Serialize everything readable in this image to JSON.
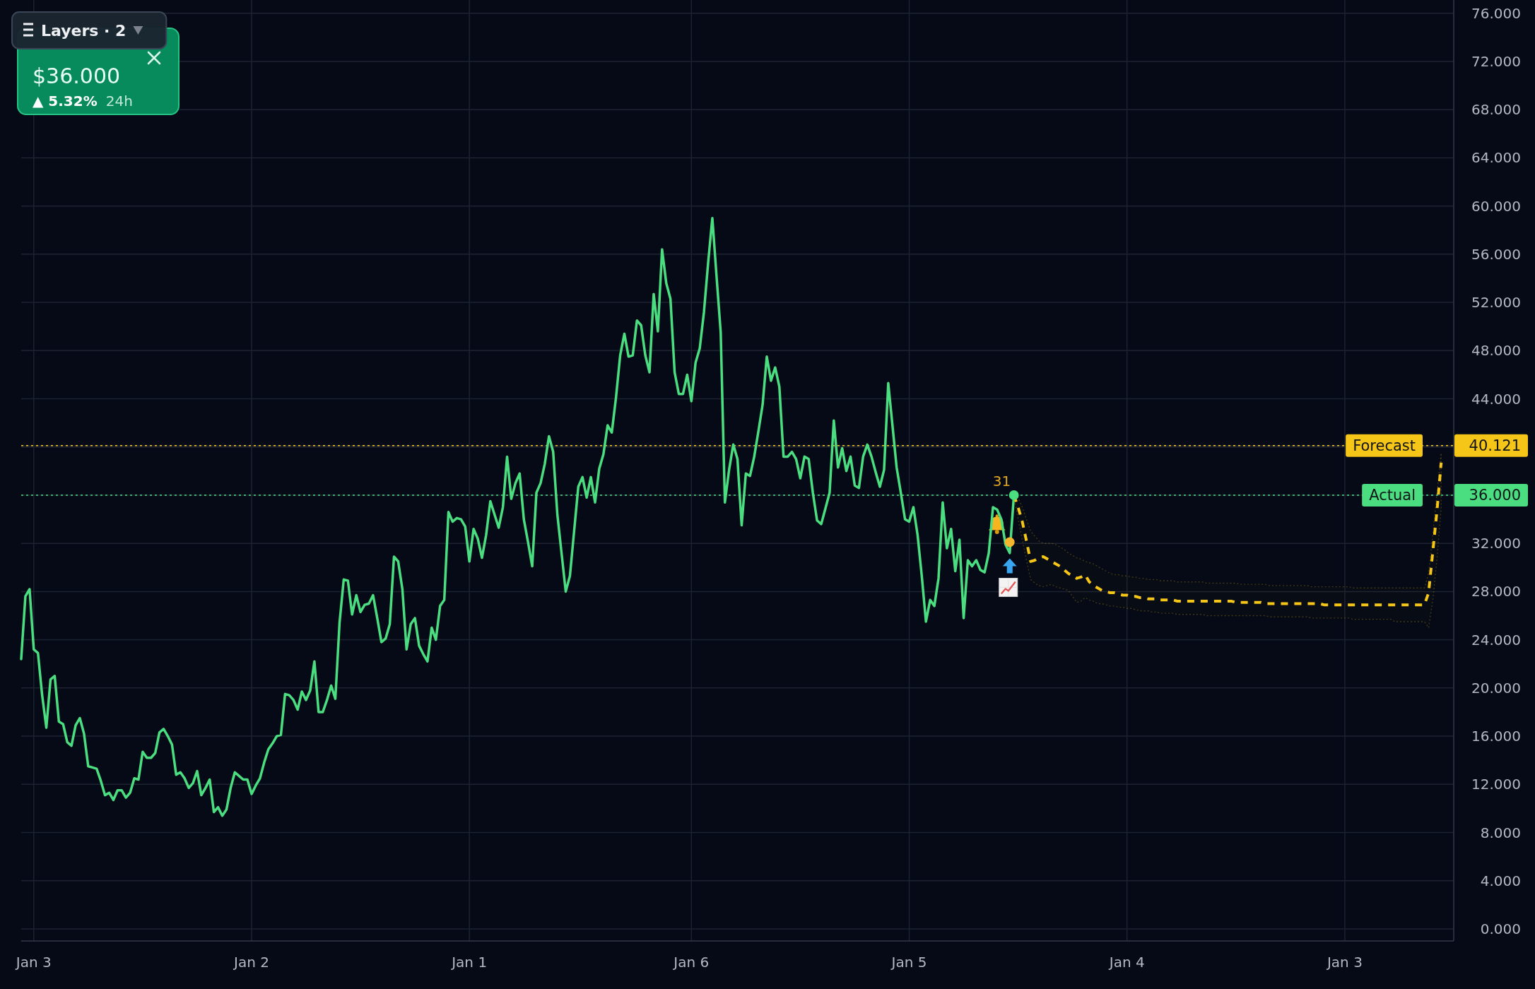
{
  "chart_data": {
    "type": "line",
    "categories": [
      null,
      null,
      null,
      "Jan 3",
      null,
      null,
      null,
      null,
      null,
      null,
      null,
      null,
      null,
      null,
      null,
      null,
      null,
      null,
      null,
      null,
      null,
      null,
      null,
      null,
      null,
      null,
      null,
      null,
      null,
      null,
      null,
      null,
      null,
      null,
      null,
      null,
      null,
      null,
      null,
      null,
      null,
      null,
      null,
      null,
      null,
      null,
      null,
      null,
      null,
      null,
      null,
      null,
      null,
      null,
      null,
      "Jan 2",
      null,
      null,
      null,
      null,
      null,
      null,
      null,
      null,
      null,
      null,
      null,
      null,
      null,
      null,
      null,
      null,
      null,
      null,
      null,
      null,
      null,
      null,
      null,
      null,
      null,
      null,
      null,
      null,
      null,
      null,
      null,
      null,
      null,
      null,
      null,
      null,
      null,
      null,
      null,
      null,
      null,
      null,
      null,
      null,
      null,
      null,
      null,
      null,
      null,
      null,
      null,
      "Jan 1",
      null,
      null,
      null,
      null,
      null,
      null,
      null,
      null,
      null,
      null,
      null,
      null,
      null,
      null,
      null,
      null,
      null,
      null,
      null,
      null,
      null,
      null,
      null,
      null,
      null,
      null,
      null,
      null,
      null,
      null,
      null,
      null,
      null,
      null,
      null,
      null,
      null,
      null,
      null,
      null,
      null,
      null,
      null,
      null,
      null,
      null,
      null,
      null,
      null,
      null,
      null,
      null,
      "Jan 6",
      null,
      null,
      null,
      null,
      null,
      null,
      null,
      null,
      null,
      null,
      null,
      null,
      null,
      null,
      null,
      null,
      null,
      null,
      null,
      null,
      null,
      null,
      null,
      null,
      null,
      null,
      null,
      null,
      null,
      null,
      null,
      null,
      null,
      null,
      null,
      null,
      null,
      null,
      null,
      null,
      null,
      null,
      null,
      null,
      null,
      null,
      null,
      null,
      null,
      null,
      null,
      "Jan 5",
      null,
      null,
      null,
      null,
      null,
      null,
      null,
      null,
      null,
      null,
      null,
      null,
      null,
      null,
      null,
      null,
      null,
      null,
      null,
      null,
      null,
      null,
      null,
      null,
      null,
      null,
      null,
      null,
      null,
      null,
      null,
      null,
      null,
      null,
      null,
      null,
      null,
      null,
      null,
      null,
      null,
      null,
      null,
      null,
      null,
      null,
      null,
      null,
      null,
      null,
      null,
      "Jan 4",
      null,
      null,
      null,
      null,
      null,
      null,
      null,
      null,
      null,
      null,
      null,
      null,
      null,
      null,
      null,
      null,
      null,
      null,
      null,
      null,
      null,
      null,
      null,
      null,
      null,
      null,
      null,
      null,
      null,
      null,
      null,
      null,
      null,
      null,
      null,
      null,
      null,
      null,
      null,
      null,
      null,
      null,
      null,
      null,
      null,
      null,
      null,
      null,
      null,
      null,
      null,
      "Jan 3",
      null,
      null,
      null,
      null,
      null,
      null,
      null,
      null,
      null,
      null,
      null,
      null,
      null,
      null,
      null,
      null,
      null,
      null,
      null,
      null,
      null,
      null,
      null,
      null,
      null,
      null
    ],
    "ylim": [
      -1,
      77.1
    ],
    "yticks": [
      {
        "value": 0,
        "label": "0.000"
      },
      {
        "value": 4,
        "label": "4.000"
      },
      {
        "value": 8,
        "label": "8.000"
      },
      {
        "value": 12,
        "label": "12.000"
      },
      {
        "value": 16,
        "label": "16.000"
      },
      {
        "value": 20,
        "label": "20.000"
      },
      {
        "value": 24,
        "label": "24.000"
      },
      {
        "value": 28,
        "label": "28.000"
      },
      {
        "value": 32,
        "label": "32.000"
      },
      {
        "value": 36,
        "label": "36.000"
      },
      {
        "value": 40,
        "label": null
      },
      {
        "value": 40.121,
        "label": "40.121"
      },
      {
        "value": 44,
        "label": "44.000"
      },
      {
        "value": 48,
        "label": "48.000"
      },
      {
        "value": 52,
        "label": "52.000"
      },
      {
        "value": 56,
        "label": "56.000"
      },
      {
        "value": 60,
        "label": "60.000"
      },
      {
        "value": 64,
        "label": "64.000"
      },
      {
        "value": 68,
        "label": "68.000"
      },
      {
        "value": 72,
        "label": "72.000"
      },
      {
        "value": 76,
        "label": "76.000"
      }
    ],
    "grid": true,
    "series": [
      {
        "color": "#4ade80",
        "values": [
          22.4,
          27.6,
          28.2,
          23.2,
          22.9,
          19.4,
          16.7,
          20.7,
          21.0,
          17.2,
          17.0,
          15.5,
          15.2,
          16.9,
          17.5,
          16.2,
          13.5,
          13.4,
          13.3,
          12.3,
          11.1,
          11.3,
          10.7,
          11.5,
          11.5,
          10.9,
          11.3,
          12.5,
          12.4,
          14.7,
          14.2,
          14.2,
          14.6,
          16.3,
          16.6,
          16.0,
          15.3,
          12.8,
          13.0,
          12.5,
          11.7,
          12.1,
          13.1,
          11.1,
          11.7,
          12.4,
          9.7,
          10.1,
          9.4,
          9.9,
          11.7,
          13.0,
          12.7,
          12.4,
          12.4,
          11.2,
          11.9,
          12.5,
          13.8,
          14.9,
          15.4,
          16.0,
          16.1,
          19.5,
          19.4,
          19.0,
          18.2,
          19.7,
          19.0,
          19.8,
          22.2,
          18.0,
          18.0,
          19.0,
          20.2,
          19.1,
          25.4,
          29.0,
          28.9,
          26.1,
          27.7,
          26.3,
          26.9,
          27.0,
          27.7,
          25.8,
          23.8,
          24.1,
          25.3,
          30.9,
          30.5,
          28.2,
          23.2,
          25.3,
          25.8,
          23.5,
          22.8,
          22.2,
          25.0,
          24.0,
          26.8,
          27.3,
          34.6,
          33.8,
          34.1,
          34.0,
          33.4,
          30.5,
          33.2,
          32.4,
          30.8,
          32.7,
          35.5,
          34.4,
          33.3,
          35.0,
          39.2,
          35.7,
          37.0,
          37.8,
          34.0,
          32.1,
          30.1,
          36.2,
          37.0,
          38.6,
          40.9,
          39.6,
          34.4,
          31.2,
          28.0,
          29.3,
          33.0,
          36.7,
          37.5,
          35.8,
          37.5,
          35.4,
          38.2,
          39.4,
          41.8,
          41.2,
          44.1,
          47.6,
          49.4,
          47.5,
          47.6,
          50.5,
          50.1,
          47.6,
          46.2,
          52.7,
          49.6,
          56.4,
          53.6,
          52.3,
          46.2,
          44.4,
          44.4,
          46.0,
          43.8,
          47.0,
          48.2,
          51.2,
          55.3,
          59.0,
          54.2,
          49.5,
          35.4,
          38.1,
          40.2,
          39.0,
          33.5,
          37.8,
          37.6,
          39.2,
          41.3,
          43.5,
          47.5,
          45.5,
          46.6,
          45.0,
          39.2,
          39.2,
          39.6,
          39.0,
          37.4,
          39.2,
          39.0,
          36.2,
          33.9,
          33.6,
          34.9,
          36.2,
          42.2,
          38.3,
          39.9,
          38.0,
          39.2,
          36.8,
          36.6,
          39.2,
          40.2,
          39.2,
          37.9,
          36.7,
          38.1,
          45.3,
          41.8,
          38.3,
          36.2,
          34.0,
          33.8,
          35.0,
          32.7,
          29.3,
          25.5,
          27.3,
          26.8,
          29.1,
          35.4,
          31.6,
          33.2,
          29.7,
          32.3,
          25.8,
          30.6,
          30.1,
          30.6,
          29.8,
          29.6,
          31.2,
          35.0,
          34.8,
          34.0,
          31.9,
          31.2,
          36.0,
          null,
          null,
          null,
          null,
          null,
          null,
          null,
          null,
          null,
          null,
          null,
          null,
          null,
          null,
          null,
          null,
          null,
          null,
          null,
          null,
          null,
          null,
          null,
          null,
          null,
          null,
          null,
          null,
          null,
          null,
          null,
          null,
          null,
          null,
          null,
          null,
          null,
          null,
          null,
          null,
          null,
          null,
          null,
          null,
          null,
          null,
          null,
          null,
          null,
          null,
          null,
          null,
          null,
          null,
          null,
          null,
          null,
          null,
          null,
          null,
          null,
          null,
          null,
          null,
          null,
          null,
          null,
          null,
          null,
          null,
          null,
          null,
          null,
          null,
          null,
          null,
          null,
          null,
          null,
          null,
          null,
          null,
          null,
          null,
          null,
          null,
          null,
          null,
          null,
          null,
          null,
          null,
          null,
          null,
          null,
          null,
          null,
          null,
          null,
          null,
          null,
          null,
          null,
          null,
          null
        ]
      },
      {
        "color": "#f5c518",
        "line_style": "dashed",
        "values": [
          null,
          null,
          null,
          null,
          null,
          null,
          null,
          null,
          null,
          null,
          null,
          null,
          null,
          null,
          null,
          null,
          null,
          null,
          null,
          null,
          null,
          null,
          null,
          null,
          null,
          null,
          null,
          null,
          null,
          null,
          null,
          null,
          null,
          null,
          null,
          null,
          null,
          null,
          null,
          null,
          null,
          null,
          null,
          null,
          null,
          null,
          null,
          null,
          null,
          null,
          null,
          null,
          null,
          null,
          null,
          null,
          null,
          null,
          null,
          null,
          null,
          null,
          null,
          null,
          null,
          null,
          null,
          null,
          null,
          null,
          null,
          null,
          null,
          null,
          null,
          null,
          null,
          null,
          null,
          null,
          null,
          null,
          null,
          null,
          null,
          null,
          null,
          null,
          null,
          null,
          null,
          null,
          null,
          null,
          null,
          null,
          null,
          null,
          null,
          null,
          null,
          null,
          null,
          null,
          null,
          null,
          null,
          null,
          null,
          null,
          null,
          null,
          null,
          null,
          null,
          null,
          null,
          null,
          null,
          null,
          null,
          null,
          null,
          null,
          null,
          null,
          null,
          null,
          null,
          null,
          null,
          null,
          null,
          null,
          null,
          null,
          null,
          null,
          null,
          null,
          null,
          null,
          null,
          null,
          null,
          null,
          null,
          null,
          null,
          null,
          null,
          null,
          null,
          null,
          null,
          null,
          null,
          null,
          null,
          null,
          null,
          null,
          null,
          null,
          null,
          null,
          null,
          null,
          null,
          null,
          null,
          null,
          null,
          null,
          null,
          null,
          null,
          null,
          null,
          null,
          null,
          null,
          null,
          null,
          null,
          null,
          null,
          null,
          null,
          null,
          null,
          null,
          null,
          null,
          null,
          null,
          null,
          null,
          null,
          null,
          null,
          null,
          null,
          null,
          null,
          null,
          null,
          null,
          null,
          null,
          null,
          null,
          null,
          null,
          null,
          null,
          null,
          null,
          null,
          null,
          null,
          null,
          null,
          null,
          null,
          null,
          null,
          null,
          null,
          null,
          null,
          null,
          null,
          null,
          null,
          null,
          null,
          36.0,
          35.0,
          33.8,
          32.2,
          30.5,
          30.6,
          30.8,
          30.9,
          30.7,
          30.5,
          30.3,
          30.1,
          29.8,
          29.5,
          29.3,
          29.1,
          29.2,
          29.4,
          28.8,
          28.5,
          28.3,
          28.1,
          28.0,
          27.9,
          27.9,
          27.8,
          27.7,
          27.7,
          27.6,
          27.6,
          27.5,
          27.5,
          27.4,
          27.4,
          27.4,
          27.3,
          27.3,
          27.3,
          27.3,
          27.2,
          27.2,
          27.2,
          27.2,
          27.2,
          27.2,
          27.2,
          27.2,
          27.2,
          27.2,
          27.2,
          27.2,
          27.2,
          27.2,
          27.1,
          27.1,
          27.1,
          27.1,
          27.1,
          27.1,
          27.1,
          27.0,
          27.0,
          27.0,
          27.0,
          27.0,
          27.0,
          27.0,
          27.0,
          27.0,
          27.0,
          27.0,
          27.0,
          27.0,
          27.0,
          26.9,
          26.9,
          26.9,
          26.9,
          26.9,
          26.9,
          26.9,
          26.9,
          26.9,
          26.9,
          26.9,
          26.9,
          26.9,
          26.9,
          26.9,
          26.9,
          26.9,
          26.9,
          26.9,
          26.9,
          26.9,
          26.9,
          26.9,
          26.9,
          26.9,
          27.9,
          31.3,
          34.7,
          38.7,
          null,
          null,
          null
        ],
        "upper": [
          null,
          null,
          null,
          null,
          null,
          null,
          null,
          null,
          null,
          null,
          null,
          null,
          null,
          null,
          null,
          null,
          null,
          null,
          null,
          null,
          null,
          null,
          null,
          null,
          null,
          null,
          null,
          null,
          null,
          null,
          null,
          null,
          null,
          null,
          null,
          null,
          null,
          null,
          null,
          null,
          null,
          null,
          null,
          null,
          null,
          null,
          null,
          null,
          null,
          null,
          null,
          null,
          null,
          null,
          null,
          null,
          null,
          null,
          null,
          null,
          null,
          null,
          null,
          null,
          null,
          null,
          null,
          null,
          null,
          null,
          null,
          null,
          null,
          null,
          null,
          null,
          null,
          null,
          null,
          null,
          null,
          null,
          null,
          null,
          null,
          null,
          null,
          null,
          null,
          null,
          null,
          null,
          null,
          null,
          null,
          null,
          null,
          null,
          null,
          null,
          null,
          null,
          null,
          null,
          null,
          null,
          null,
          null,
          null,
          null,
          null,
          null,
          null,
          null,
          null,
          null,
          null,
          null,
          null,
          null,
          null,
          null,
          null,
          null,
          null,
          null,
          null,
          null,
          null,
          null,
          null,
          null,
          null,
          null,
          null,
          null,
          null,
          null,
          null,
          null,
          null,
          null,
          null,
          null,
          null,
          null,
          null,
          null,
          null,
          null,
          null,
          null,
          null,
          null,
          null,
          null,
          null,
          null,
          null,
          null,
          null,
          null,
          null,
          null,
          null,
          null,
          null,
          null,
          null,
          null,
          null,
          null,
          null,
          null,
          null,
          null,
          null,
          null,
          null,
          null,
          null,
          null,
          null,
          null,
          null,
          null,
          null,
          null,
          null,
          null,
          null,
          null,
          null,
          null,
          null,
          null,
          null,
          null,
          null,
          null,
          null,
          null,
          null,
          null,
          null,
          null,
          null,
          null,
          null,
          null,
          null,
          null,
          null,
          null,
          null,
          null,
          null,
          null,
          null,
          null,
          null,
          null,
          null,
          null,
          null,
          null,
          null,
          null,
          null,
          null,
          null,
          null,
          null,
          null,
          null,
          null,
          null,
          36.0,
          35.8,
          35.0,
          34.0,
          33.0,
          32.6,
          32.2,
          32.0,
          32.0,
          32.0,
          31.9,
          31.7,
          31.5,
          31.2,
          31.0,
          30.8,
          30.7,
          30.5,
          30.4,
          30.3,
          30.1,
          29.9,
          29.7,
          29.5,
          29.4,
          29.4,
          29.3,
          29.3,
          29.2,
          29.2,
          29.1,
          29.1,
          29.0,
          29.0,
          29.0,
          28.9,
          28.9,
          28.9,
          28.9,
          28.8,
          28.8,
          28.8,
          28.8,
          28.8,
          28.8,
          28.8,
          28.7,
          28.7,
          28.7,
          28.7,
          28.7,
          28.7,
          28.7,
          28.7,
          28.6,
          28.6,
          28.6,
          28.6,
          28.6,
          28.6,
          28.6,
          28.5,
          28.5,
          28.5,
          28.5,
          28.5,
          28.5,
          28.5,
          28.5,
          28.5,
          28.5,
          28.4,
          28.4,
          28.4,
          28.4,
          28.4,
          28.4,
          28.4,
          28.4,
          28.4,
          28.4,
          28.3,
          28.3,
          28.3,
          28.3,
          28.3,
          28.3,
          28.3,
          28.3,
          28.3,
          28.3,
          28.3,
          28.3,
          28.3,
          28.3,
          28.3,
          28.3,
          28.3,
          28.3,
          29.5,
          32.7,
          36.2,
          39.5,
          null,
          null,
          null
        ],
        "lower": [
          null,
          null,
          null,
          null,
          null,
          null,
          null,
          null,
          null,
          null,
          null,
          null,
          null,
          null,
          null,
          null,
          null,
          null,
          null,
          null,
          null,
          null,
          null,
          null,
          null,
          null,
          null,
          null,
          null,
          null,
          null,
          null,
          null,
          null,
          null,
          null,
          null,
          null,
          null,
          null,
          null,
          null,
          null,
          null,
          null,
          null,
          null,
          null,
          null,
          null,
          null,
          null,
          null,
          null,
          null,
          null,
          null,
          null,
          null,
          null,
          null,
          null,
          null,
          null,
          null,
          null,
          null,
          null,
          null,
          null,
          null,
          null,
          null,
          null,
          null,
          null,
          null,
          null,
          null,
          null,
          null,
          null,
          null,
          null,
          null,
          null,
          null,
          null,
          null,
          null,
          null,
          null,
          null,
          null,
          null,
          null,
          null,
          null,
          null,
          null,
          null,
          null,
          null,
          null,
          null,
          null,
          null,
          null,
          null,
          null,
          null,
          null,
          null,
          null,
          null,
          null,
          null,
          null,
          null,
          null,
          null,
          null,
          null,
          null,
          null,
          null,
          null,
          null,
          null,
          null,
          null,
          null,
          null,
          null,
          null,
          null,
          null,
          null,
          null,
          null,
          null,
          null,
          null,
          null,
          null,
          null,
          null,
          null,
          null,
          null,
          null,
          null,
          null,
          null,
          null,
          null,
          null,
          null,
          null,
          null,
          null,
          null,
          null,
          null,
          null,
          null,
          null,
          null,
          null,
          null,
          null,
          null,
          null,
          null,
          null,
          null,
          null,
          null,
          null,
          null,
          null,
          null,
          null,
          null,
          null,
          null,
          null,
          null,
          null,
          null,
          null,
          null,
          null,
          null,
          null,
          null,
          null,
          null,
          null,
          null,
          null,
          null,
          null,
          null,
          null,
          null,
          null,
          null,
          null,
          null,
          null,
          null,
          null,
          null,
          null,
          null,
          null,
          null,
          null,
          null,
          null,
          null,
          null,
          null,
          null,
          null,
          null,
          null,
          null,
          null,
          null,
          null,
          null,
          null,
          null,
          null,
          null,
          36.0,
          34.0,
          32.3,
          30.6,
          29.0,
          28.7,
          28.5,
          28.4,
          28.5,
          28.6,
          28.4,
          28.3,
          28.2,
          28.1,
          27.6,
          27.1,
          27.2,
          27.5,
          27.3,
          27.2,
          27.0,
          27.0,
          26.9,
          26.8,
          26.8,
          26.7,
          26.7,
          26.6,
          26.6,
          26.5,
          26.4,
          26.4,
          26.4,
          26.3,
          26.3,
          26.2,
          26.2,
          26.2,
          26.2,
          26.1,
          26.1,
          26.1,
          26.1,
          26.1,
          26.1,
          26.1,
          26.0,
          26.0,
          26.0,
          26.0,
          26.0,
          26.0,
          26.0,
          26.0,
          26.0,
          26.0,
          26.0,
          26.0,
          26.0,
          26.0,
          26.0,
          25.9,
          25.9,
          25.9,
          25.9,
          25.9,
          25.9,
          25.9,
          25.9,
          25.9,
          25.9,
          25.8,
          25.8,
          25.8,
          25.8,
          25.8,
          25.8,
          25.8,
          25.8,
          25.8,
          25.8,
          25.7,
          25.7,
          25.7,
          25.7,
          25.7,
          25.7,
          25.7,
          25.7,
          25.7,
          25.7,
          25.5,
          25.5,
          25.5,
          25.5,
          25.5,
          25.5,
          25.5,
          25.5,
          25.0,
          27.3,
          30.7,
          35.0,
          null,
          null,
          null
        ]
      },
      {
        "type": "scatter",
        "color": "#4ade80",
        "marker": "circle",
        "values": [
          null,
          null,
          null,
          null,
          null,
          null,
          null,
          null,
          null,
          null,
          null,
          null,
          null,
          null,
          null,
          null,
          null,
          null,
          null,
          null,
          null,
          null,
          null,
          null,
          null,
          null,
          null,
          null,
          null,
          null,
          null,
          null,
          null,
          null,
          null,
          null,
          null,
          null,
          null,
          null,
          null,
          null,
          null,
          null,
          null,
          null,
          null,
          null,
          null,
          null,
          null,
          null,
          null,
          null,
          null,
          null,
          null,
          null,
          null,
          null,
          null,
          null,
          null,
          null,
          null,
          null,
          null,
          null,
          null,
          null,
          null,
          null,
          null,
          null,
          null,
          null,
          null,
          null,
          null,
          null,
          null,
          null,
          null,
          null,
          null,
          null,
          null,
          null,
          null,
          null,
          null,
          null,
          null,
          null,
          null,
          null,
          null,
          null,
          null,
          null,
          null,
          null,
          null,
          null,
          null,
          null,
          null,
          null,
          null,
          null,
          null,
          null,
          null,
          null,
          null,
          null,
          null,
          null,
          null,
          null,
          null,
          null,
          null,
          null,
          null,
          null,
          null,
          null,
          null,
          null,
          null,
          null,
          null,
          null,
          null,
          null,
          null,
          null,
          null,
          null,
          null,
          null,
          null,
          null,
          null,
          null,
          null,
          null,
          null,
          null,
          null,
          null,
          null,
          null,
          null,
          null,
          null,
          null,
          null,
          null,
          null,
          null,
          null,
          null,
          null,
          null,
          null,
          null,
          null,
          null,
          null,
          null,
          null,
          null,
          null,
          null,
          null,
          null,
          null,
          null,
          null,
          null,
          null,
          null,
          null,
          null,
          null,
          null,
          null,
          null,
          null,
          null,
          null,
          null,
          null,
          null,
          null,
          null,
          null,
          null,
          null,
          null,
          null,
          null,
          null,
          null,
          null,
          null,
          null,
          null,
          null,
          null,
          null,
          null,
          null,
          null,
          null,
          null,
          null,
          null,
          null,
          null,
          null,
          null,
          null,
          null,
          null,
          null,
          null,
          null,
          null,
          null,
          null,
          null,
          null,
          null,
          null,
          36.0,
          null,
          null,
          null,
          null,
          null,
          null,
          null,
          null,
          null,
          null,
          null,
          null,
          null,
          null,
          null,
          null,
          null,
          null,
          null,
          null,
          null,
          null,
          null,
          null,
          null,
          null,
          null,
          null,
          null,
          null,
          null,
          null,
          null,
          null,
          null,
          null,
          null,
          null,
          null,
          null,
          null,
          null,
          null,
          null,
          null,
          null,
          null,
          null,
          null,
          null,
          null,
          null,
          null,
          null,
          null,
          null,
          null,
          null,
          null,
          null,
          null,
          null,
          null,
          null,
          null,
          null,
          null,
          null,
          null,
          null,
          null,
          null,
          null,
          null,
          null,
          null,
          null,
          null,
          null,
          null,
          null,
          null,
          null,
          null,
          null,
          null,
          null,
          null,
          null,
          null,
          null,
          null,
          null,
          null,
          null,
          null,
          null,
          null,
          null,
          null,
          null,
          null,
          null,
          null,
          null
        ]
      },
      {
        "type": "scatter",
        "color": "#f5b52e",
        "marker": "circle",
        "values": [
          null,
          null,
          null,
          null,
          null,
          null,
          null,
          null,
          null,
          null,
          null,
          null,
          null,
          null,
          null,
          null,
          null,
          null,
          null,
          null,
          null,
          null,
          null,
          null,
          null,
          null,
          null,
          null,
          null,
          null,
          null,
          null,
          null,
          null,
          null,
          null,
          null,
          null,
          null,
          null,
          null,
          null,
          null,
          null,
          null,
          null,
          null,
          null,
          null,
          null,
          null,
          null,
          null,
          null,
          null,
          null,
          null,
          null,
          null,
          null,
          null,
          null,
          null,
          null,
          null,
          null,
          null,
          null,
          null,
          null,
          null,
          null,
          null,
          null,
          null,
          null,
          null,
          null,
          null,
          null,
          null,
          null,
          null,
          null,
          null,
          null,
          null,
          null,
          null,
          null,
          null,
          null,
          null,
          null,
          null,
          null,
          null,
          null,
          null,
          null,
          null,
          null,
          null,
          null,
          null,
          null,
          null,
          null,
          null,
          null,
          null,
          null,
          null,
          null,
          null,
          null,
          null,
          null,
          null,
          null,
          null,
          null,
          null,
          null,
          null,
          null,
          null,
          null,
          null,
          null,
          null,
          null,
          null,
          null,
          null,
          null,
          null,
          null,
          null,
          null,
          null,
          null,
          null,
          null,
          null,
          null,
          null,
          null,
          null,
          null,
          null,
          null,
          null,
          null,
          null,
          null,
          null,
          null,
          null,
          null,
          null,
          null,
          null,
          null,
          null,
          null,
          null,
          null,
          null,
          null,
          null,
          null,
          null,
          null,
          null,
          null,
          null,
          null,
          null,
          null,
          null,
          null,
          null,
          null,
          null,
          null,
          null,
          null,
          null,
          null,
          null,
          null,
          null,
          null,
          null,
          null,
          null,
          null,
          null,
          null,
          null,
          null,
          null,
          null,
          null,
          null,
          null,
          null,
          null,
          null,
          null,
          null,
          null,
          null,
          null,
          null,
          null,
          null,
          null,
          null,
          null,
          null,
          null,
          null,
          null,
          null,
          null,
          null,
          null,
          null,
          null,
          null,
          null,
          null,
          null,
          null,
          32.1,
          null,
          null,
          null,
          null,
          null,
          null,
          null,
          null,
          null,
          null,
          null,
          null,
          null,
          null,
          null,
          null,
          null,
          null,
          null,
          null,
          null,
          null,
          null,
          null,
          null,
          null,
          null,
          null,
          null,
          null,
          null,
          null,
          null,
          null,
          null,
          null,
          null,
          null,
          null,
          null,
          null,
          null,
          null,
          null,
          null,
          null,
          null,
          null,
          null,
          null,
          null,
          null,
          null,
          null,
          null,
          null,
          null,
          null,
          null,
          null,
          null,
          null,
          null,
          null,
          null,
          null,
          null,
          null,
          null,
          null,
          null,
          null,
          null,
          null,
          null,
          null,
          null,
          null,
          null,
          null,
          null,
          null,
          null,
          null,
          null,
          null,
          null,
          null,
          null,
          null,
          null,
          null,
          null,
          null,
          null,
          null,
          null,
          null,
          null,
          null,
          null,
          null,
          null,
          null,
          null,
          null
        ]
      }
    ],
    "ref_lines": [
      {
        "axis": "y",
        "value": 40.121,
        "label": "Forecast",
        "color": "#f5c518",
        "line_style": "dotted"
      },
      {
        "axis": "y",
        "value": 36,
        "label": "Actual",
        "color": "#4ade80",
        "line_style": "dotted"
      }
    ],
    "annotations": [
      "Layers · 2",
      "$36.000",
      "▲ 5.32%",
      "24h",
      "31"
    ]
  }
}
